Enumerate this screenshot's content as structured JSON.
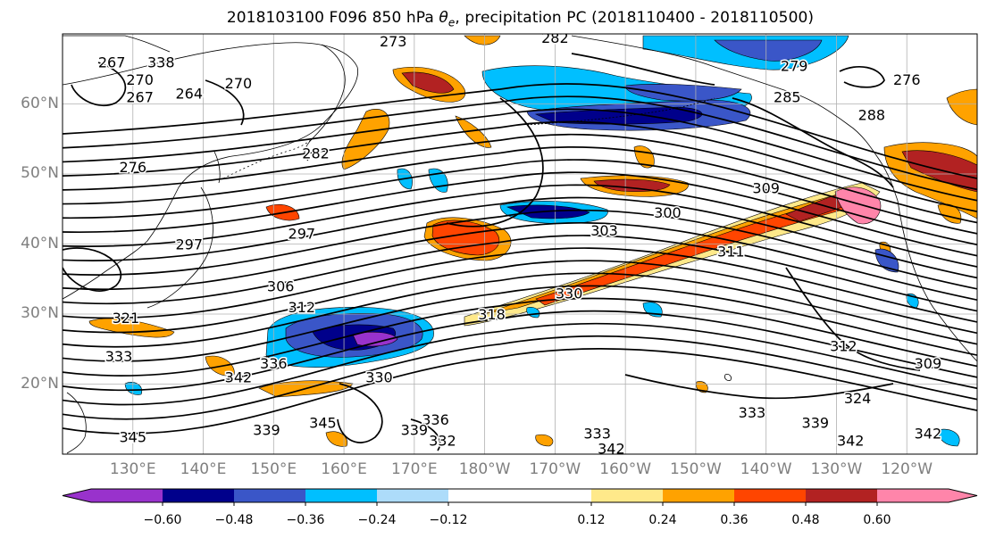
{
  "title": {
    "prefix": "2018103100 F096 850 hPa ",
    "theta": "θ",
    "theta_sub": "e",
    "suffix": ", precipitation PC (2018110400 - 2018110500)"
  },
  "map": {
    "lat_labels": [
      "60°N",
      "50°N",
      "40°N",
      "30°N",
      "20°N"
    ],
    "lat_values": [
      60,
      50,
      40,
      30,
      20
    ],
    "lon_labels": [
      "130°E",
      "140°E",
      "150°E",
      "160°E",
      "170°E",
      "180°W",
      "170°W",
      "160°W",
      "150°W",
      "140°W",
      "130°W",
      "120°W"
    ],
    "lon_values": [
      130,
      140,
      150,
      160,
      170,
      180,
      190,
      200,
      210,
      220,
      230,
      240
    ],
    "extent": {
      "lon_min": 120,
      "lon_max": 250,
      "lat_min": 10,
      "lat_max": 70
    },
    "contour_field": "850 hPa theta-e",
    "contour_labels": [
      {
        "text": "267",
        "lon": 127,
        "lat": 66
      },
      {
        "text": "270",
        "lon": 131,
        "lat": 63.5
      },
      {
        "text": "267",
        "lon": 131,
        "lat": 61
      },
      {
        "text": "264",
        "lon": 138,
        "lat": 61.5
      },
      {
        "text": "270",
        "lon": 145,
        "lat": 63
      },
      {
        "text": "273",
        "lon": 167,
        "lat": 69
      },
      {
        "text": "282",
        "lon": 190,
        "lat": 69.5
      },
      {
        "text": "279",
        "lon": 224,
        "lat": 65.5
      },
      {
        "text": "276",
        "lon": 240,
        "lat": 63.5
      },
      {
        "text": "285",
        "lon": 223,
        "lat": 61
      },
      {
        "text": "288",
        "lon": 235,
        "lat": 58.5
      },
      {
        "text": "282",
        "lon": 156,
        "lat": 53
      },
      {
        "text": "276",
        "lon": 130,
        "lat": 51
      },
      {
        "text": "297",
        "lon": 138,
        "lat": 40
      },
      {
        "text": "297",
        "lon": 154,
        "lat": 41.5
      },
      {
        "text": "303",
        "lon": 197,
        "lat": 42
      },
      {
        "text": "300",
        "lon": 206,
        "lat": 44.5
      },
      {
        "text": "309",
        "lon": 220,
        "lat": 48
      },
      {
        "text": "311",
        "lon": 215,
        "lat": 39
      },
      {
        "text": "306",
        "lon": 151,
        "lat": 34
      },
      {
        "text": "312",
        "lon": 154,
        "lat": 31
      },
      {
        "text": "330",
        "lon": 192,
        "lat": 33
      },
      {
        "text": "318",
        "lon": 181,
        "lat": 30
      },
      {
        "text": "321",
        "lon": 129,
        "lat": 29.5
      },
      {
        "text": "333",
        "lon": 128,
        "lat": 24
      },
      {
        "text": "336",
        "lon": 150,
        "lat": 23
      },
      {
        "text": "342",
        "lon": 145,
        "lat": 21
      },
      {
        "text": "330",
        "lon": 165,
        "lat": 21
      },
      {
        "text": "312",
        "lon": 231,
        "lat": 25.5
      },
      {
        "text": "309",
        "lon": 243,
        "lat": 23
      },
      {
        "text": "324",
        "lon": 233,
        "lat": 18
      },
      {
        "text": "333",
        "lon": 218,
        "lat": 16
      },
      {
        "text": "339",
        "lon": 227,
        "lat": 14.5
      },
      {
        "text": "342",
        "lon": 232,
        "lat": 12
      },
      {
        "text": "342",
        "lon": 243,
        "lat": 13
      },
      {
        "text": "345",
        "lon": 130,
        "lat": 12.5
      },
      {
        "text": "339",
        "lon": 149,
        "lat": 13.5
      },
      {
        "text": "345",
        "lon": 157,
        "lat": 14.5
      },
      {
        "text": "336",
        "lon": 173,
        "lat": 15
      },
      {
        "text": "339",
        "lon": 170,
        "lat": 13.5
      },
      {
        "text": "332",
        "lon": 174,
        "lat": 12
      },
      {
        "text": "333",
        "lon": 196,
        "lat": 13
      },
      {
        "text": "342",
        "lon": 198,
        "lat": 10.8
      },
      {
        "text": "338",
        "lon": 134,
        "lat": 66
      }
    ]
  },
  "colorbar": {
    "colors": [
      "#9932CC",
      "#00008B",
      "#3A56C8",
      "#00BFFF",
      "#ADDCFA",
      "#FFFFFF",
      "#FFE98A",
      "#FFA200",
      "#FF4500",
      "#B22222",
      "#FF85AA"
    ],
    "tick_labels": [
      "−0.60",
      "−0.48",
      "−0.36",
      "−0.24",
      "−0.12",
      "0.12",
      "0.24",
      "0.36",
      "0.48",
      "0.60"
    ],
    "tick_values": [
      -0.6,
      -0.48,
      -0.36,
      -0.24,
      -0.12,
      0.12,
      0.24,
      0.36,
      0.48,
      0.6
    ],
    "extend": "both"
  }
}
